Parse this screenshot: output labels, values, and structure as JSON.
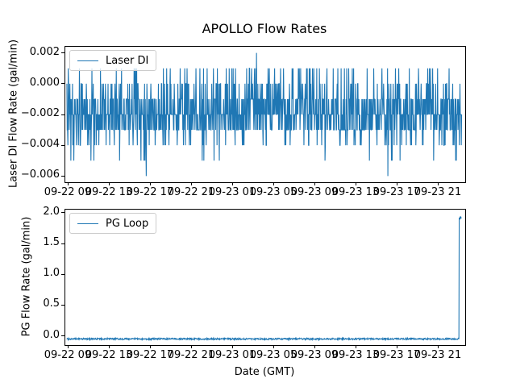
{
  "figure": {
    "title": "APOLLO Flow Rates",
    "xlabel": "Date (GMT)",
    "background": "#ffffff",
    "line_color": "#1f77b4"
  },
  "chart_data": [
    {
      "type": "line",
      "name": "laser-di",
      "title": "",
      "ylabel": "Laser DI Flow Rate (gal/min)",
      "legend": {
        "label": "Laser DI",
        "position": "upper left"
      },
      "grid": false,
      "ylim": [
        -0.0064,
        0.0024
      ],
      "ytick_values": [
        0.002,
        0.0,
        -0.002,
        -0.004,
        -0.006
      ],
      "ytick_labels": [
        "0.002",
        "0.000",
        "−0.002",
        "−0.004",
        "−0.006"
      ],
      "xtick_labels": [
        "09-22 09",
        "09-22 13",
        "09-22 17",
        "09-22 21",
        "09-23 01",
        "09-23 05",
        "09-23 09",
        "09-23 13",
        "09-23 17",
        "09-23 21"
      ],
      "series": [
        {
          "name": "Laser DI",
          "color": "#1f77b4",
          "description": "high-frequency noise quantized in 0.001 gal/min steps; dense band -0.003..-0.001, frequent spikes to 0.000/0.001 and -0.004, occasional -0.005, rare -0.006, single peak 0.002 near center",
          "levels": [
            0.002,
            0.001,
            0.0,
            -0.001,
            -0.002,
            -0.003,
            -0.004,
            -0.005,
            -0.006
          ],
          "level_weights": [
            0.0,
            0.05,
            0.09,
            0.24,
            0.3,
            0.245,
            0.06,
            0.017,
            0.003
          ],
          "peak": {
            "value": 0.002,
            "x_frac": 0.48
          },
          "n_points": 1200,
          "seed": 1234,
          "x_start_frac": 0.004,
          "x_end_frac": 0.991
        }
      ]
    },
    {
      "type": "line",
      "name": "pg-loop",
      "title": "",
      "ylabel": "PG Flow Rate (gal/min)",
      "xlabel": "Date (GMT)",
      "legend": {
        "label": "PG Loop",
        "position": "upper left"
      },
      "grid": false,
      "ylim": [
        -0.15,
        2.05
      ],
      "ytick_values": [
        2.0,
        1.5,
        1.0,
        0.5,
        0.0
      ],
      "ytick_labels": [
        "2.0",
        "1.5",
        "1.0",
        "0.5",
        "0.0"
      ],
      "xtick_labels": [
        "09-22 09",
        "09-22 13",
        "09-22 17",
        "09-22 21",
        "09-23 01",
        "09-23 05",
        "09-23 09",
        "09-23 13",
        "09-23 17",
        "09-23 21"
      ],
      "series": [
        {
          "name": "PG Loop",
          "color": "#1f77b4",
          "description": "flat baseline near -0.05 gal/min with slight noise for the whole span, single spike to about 1.9 gal/min at the extreme right end",
          "baseline": -0.05,
          "noise_amp": 0.025,
          "end_spike": {
            "value": 1.93,
            "x_frac": 0.985
          },
          "n_points": 1200,
          "seed": 99,
          "x_start_frac": 0.004,
          "x_end_frac": 0.99
        }
      ]
    }
  ]
}
